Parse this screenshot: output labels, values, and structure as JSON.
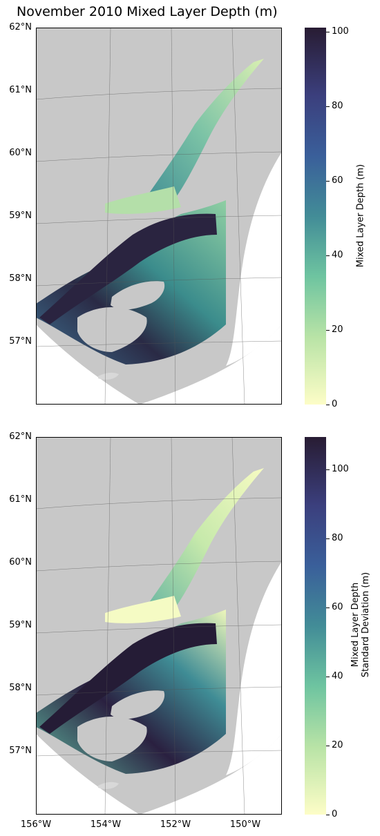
{
  "figure": {
    "title": "November 2010 Mixed Layer Depth (m)"
  },
  "map": {
    "lat_labels": [
      "62°N",
      "61°N",
      "60°N",
      "59°N",
      "58°N",
      "57°N"
    ],
    "lon_labels": [
      "156°W",
      "154°W",
      "152°W",
      "150°W"
    ],
    "land_color": "#c8c8c8",
    "grid_color": "#555555"
  },
  "panels": [
    {
      "id": "top",
      "colorbar": {
        "label": "Mixed Layer Depth (m)",
        "ticks": [
          "0",
          "20",
          "40",
          "60",
          "80",
          "100"
        ],
        "max": 101
      }
    },
    {
      "id": "bottom",
      "colorbar": {
        "label_line1": "Mixed Layer Depth",
        "label_line2": "Standard Deviation (m)",
        "ticks": [
          "0",
          "20",
          "40",
          "60",
          "80",
          "100"
        ],
        "max": 109
      }
    }
  ],
  "colormap": {
    "name": "deep",
    "low": "#fdfdc7",
    "mid": "#4fa3a2",
    "high": "#281c33"
  }
}
